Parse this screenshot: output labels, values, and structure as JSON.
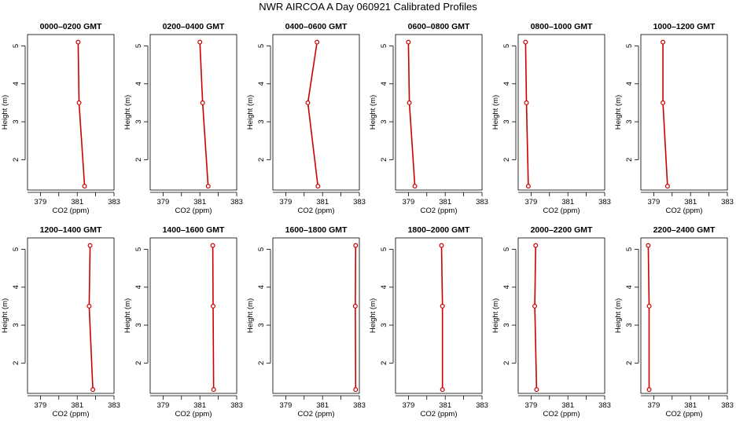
{
  "figure_title": "NWR AIRCOA A  Day 060921  Calibrated Profiles",
  "colors": {
    "series": "#cc0000",
    "axis": "#000000"
  },
  "chart_data": [
    {
      "type": "line",
      "title": "0000–0200 GMT",
      "xlabel": "CO2 (ppm)",
      "ylabel": "Height (m)",
      "xlim": [
        378.3,
        383
      ],
      "ylim": [
        1.2,
        5.3
      ],
      "xticks": [
        379,
        381,
        383
      ],
      "xtick_minor": [
        380,
        382
      ],
      "yticks": [
        2,
        3,
        4,
        5
      ],
      "x": [
        381.4,
        381.1,
        381.05
      ],
      "y": [
        1.3,
        3.5,
        5.1
      ]
    },
    {
      "type": "line",
      "title": "0200–0400 GMT",
      "xlabel": "CO2 (ppm)",
      "ylabel": "Height (m)",
      "xlim": [
        378.3,
        383
      ],
      "ylim": [
        1.2,
        5.3
      ],
      "xticks": [
        379,
        381,
        383
      ],
      "xtick_minor": [
        380,
        382
      ],
      "yticks": [
        2,
        3,
        4,
        5
      ],
      "x": [
        381.45,
        381.15,
        381.0
      ],
      "y": [
        1.3,
        3.5,
        5.1
      ]
    },
    {
      "type": "line",
      "title": "0400–0600 GMT",
      "xlabel": "CO2 (ppm)",
      "ylabel": "Height (m)",
      "xlim": [
        378.3,
        383
      ],
      "ylim": [
        1.2,
        5.3
      ],
      "xticks": [
        379,
        381,
        383
      ],
      "xtick_minor": [
        380,
        382
      ],
      "yticks": [
        2,
        3,
        4,
        5
      ],
      "x": [
        380.75,
        380.2,
        380.7
      ],
      "y": [
        1.3,
        3.5,
        5.1
      ]
    },
    {
      "type": "line",
      "title": "0600–0800 GMT",
      "xlabel": "CO2 (ppm)",
      "ylabel": "Height (m)",
      "xlim": [
        378.3,
        383
      ],
      "ylim": [
        1.2,
        5.3
      ],
      "xticks": [
        379,
        381,
        383
      ],
      "xtick_minor": [
        380,
        382
      ],
      "yticks": [
        2,
        3,
        4,
        5
      ],
      "x": [
        379.35,
        379.05,
        379.0
      ],
      "y": [
        1.3,
        3.5,
        5.1
      ]
    },
    {
      "type": "line",
      "title": "0800–1000 GMT",
      "xlabel": "CO2 (ppm)",
      "ylabel": "Height (m)",
      "xlim": [
        378.3,
        383
      ],
      "ylim": [
        1.2,
        5.3
      ],
      "xticks": [
        379,
        381,
        383
      ],
      "xtick_minor": [
        380,
        382
      ],
      "yticks": [
        2,
        3,
        4,
        5
      ],
      "x": [
        378.85,
        378.75,
        378.7
      ],
      "y": [
        1.3,
        3.5,
        5.1
      ]
    },
    {
      "type": "line",
      "title": "1000–1200 GMT",
      "xlabel": "CO2 (ppm)",
      "ylabel": "Height (m)",
      "xlim": [
        378.3,
        383
      ],
      "ylim": [
        1.2,
        5.3
      ],
      "xticks": [
        379,
        381,
        383
      ],
      "xtick_minor": [
        380,
        382
      ],
      "yticks": [
        2,
        3,
        4,
        5
      ],
      "x": [
        379.75,
        379.5,
        379.5
      ],
      "y": [
        1.3,
        3.5,
        5.1
      ]
    },
    {
      "type": "line",
      "title": "1200–1400 GMT",
      "xlabel": "CO2 (ppm)",
      "ylabel": "Height (m)",
      "xlim": [
        378.3,
        383
      ],
      "ylim": [
        1.2,
        5.3
      ],
      "xticks": [
        379,
        381,
        383
      ],
      "xtick_minor": [
        380,
        382
      ],
      "yticks": [
        2,
        3,
        4,
        5
      ],
      "x": [
        381.85,
        381.65,
        381.7
      ],
      "y": [
        1.3,
        3.5,
        5.1
      ]
    },
    {
      "type": "line",
      "title": "1400–1600 GMT",
      "xlabel": "CO2 (ppm)",
      "ylabel": "Height (m)",
      "xlim": [
        378.3,
        383
      ],
      "ylim": [
        1.2,
        5.3
      ],
      "xticks": [
        379,
        381,
        383
      ],
      "xtick_minor": [
        380,
        382
      ],
      "yticks": [
        2,
        3,
        4,
        5
      ],
      "x": [
        381.75,
        381.72,
        381.7
      ],
      "y": [
        1.3,
        3.5,
        5.1
      ]
    },
    {
      "type": "line",
      "title": "1600–1800 GMT",
      "xlabel": "CO2 (ppm)",
      "ylabel": "Height (m)",
      "xlim": [
        378.3,
        383
      ],
      "ylim": [
        1.2,
        5.3
      ],
      "xticks": [
        379,
        381,
        383
      ],
      "xtick_minor": [
        380,
        382
      ],
      "yticks": [
        2,
        3,
        4,
        5
      ],
      "x": [
        382.8,
        382.78,
        382.8
      ],
      "y": [
        1.3,
        3.5,
        5.1
      ]
    },
    {
      "type": "line",
      "title": "1800–2000 GMT",
      "xlabel": "CO2 (ppm)",
      "ylabel": "Height (m)",
      "xlim": [
        378.3,
        383
      ],
      "ylim": [
        1.2,
        5.3
      ],
      "xticks": [
        379,
        381,
        383
      ],
      "xtick_minor": [
        380,
        382
      ],
      "yticks": [
        2,
        3,
        4,
        5
      ],
      "x": [
        380.85,
        380.85,
        380.8
      ],
      "y": [
        1.3,
        3.5,
        5.1
      ]
    },
    {
      "type": "line",
      "title": "2000–2200 GMT",
      "xlabel": "CO2 (ppm)",
      "ylabel": "Height (m)",
      "xlim": [
        378.3,
        383
      ],
      "ylim": [
        1.2,
        5.3
      ],
      "xticks": [
        379,
        381,
        383
      ],
      "xtick_minor": [
        380,
        382
      ],
      "yticks": [
        2,
        3,
        4,
        5
      ],
      "x": [
        379.3,
        379.2,
        379.25
      ],
      "y": [
        1.3,
        3.5,
        5.1
      ]
    },
    {
      "type": "line",
      "title": "2200–2400 GMT",
      "xlabel": "CO2 (ppm)",
      "ylabel": "Height (m)",
      "xlim": [
        378.3,
        383
      ],
      "ylim": [
        1.2,
        5.3
      ],
      "xticks": [
        379,
        381,
        383
      ],
      "xtick_minor": [
        380,
        382
      ],
      "yticks": [
        2,
        3,
        4,
        5
      ],
      "x": [
        378.75,
        378.75,
        378.7
      ],
      "y": [
        1.3,
        3.5,
        5.1
      ]
    }
  ]
}
